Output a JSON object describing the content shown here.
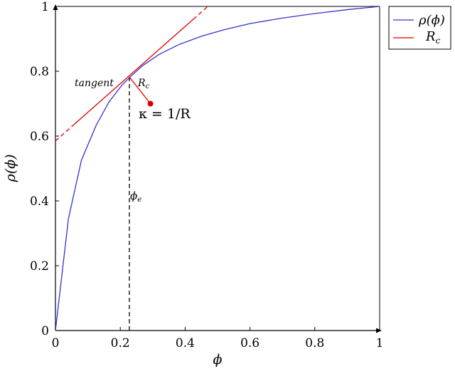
{
  "chart_data": {
    "type": "line",
    "xlabel": "ϕ",
    "ylabel": "ρ(ϕ)",
    "xlim": [
      0,
      1
    ],
    "ylim": [
      0,
      1
    ],
    "x_ticks": [
      0,
      0.2,
      0.4,
      0.6,
      0.8,
      1
    ],
    "y_ticks": [
      0,
      0.2,
      0.4,
      0.6,
      0.8,
      1
    ],
    "x_tick_labels": [
      "0",
      "0.2",
      "0.4",
      "0.6",
      "0.8",
      "1"
    ],
    "y_tick_labels": [
      "0",
      "0.2",
      "0.4",
      "0.6",
      "0.8",
      "1"
    ],
    "grid": false,
    "legend_position": "top-right-outside",
    "series": [
      {
        "name": "ρ(ϕ)",
        "color": "#3333cc",
        "x": [
          0,
          0.04,
          0.08,
          0.125,
          0.165,
          0.205,
          0.23,
          0.27,
          0.32,
          0.38,
          0.45,
          0.52,
          0.6,
          0.7,
          0.8,
          0.9,
          1.0
        ],
        "y": [
          0,
          0.345,
          0.525,
          0.632,
          0.705,
          0.757,
          0.782,
          0.818,
          0.852,
          0.882,
          0.908,
          0.928,
          0.947,
          0.964,
          0.978,
          0.99,
          1.0
        ]
      },
      {
        "name": "R_c",
        "color": "#dd0000",
        "tangent": {
          "x": [
            0,
            0.47
          ],
          "y": [
            0.585,
            1.0
          ],
          "solid_range": [
            0.05,
            0.425
          ]
        },
        "radius_segment": {
          "x": [
            0.228,
            0.293
          ],
          "y": [
            0.782,
            0.7
          ]
        }
      }
    ],
    "vertical_marker": {
      "x": 0.228,
      "y_from": 0,
      "y_to": 0.782
    },
    "point": {
      "x": 0.293,
      "y": 0.7,
      "color": "#dd0000"
    },
    "annotations": {
      "tangent": "tangent",
      "rc": "R_c",
      "kappa": "κ = 1/R",
      "phi_e": "ϕ_e"
    }
  }
}
